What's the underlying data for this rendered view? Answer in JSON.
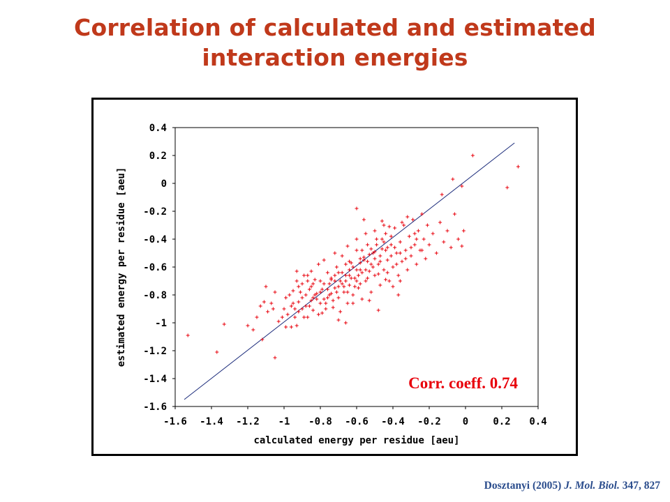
{
  "slide": {
    "title": "Correlation of calculated and estimated interaction energies"
  },
  "citation": {
    "author_year": "Dosztanyi (2005) ",
    "journal": "J. Mol. Biol.",
    "volume_pages": " 347, 827"
  },
  "colors": {
    "title": "#c0391b",
    "points": "#e8000b",
    "fit_line": "#1a2a7a",
    "annotation": "#e8000b",
    "citation": "#2a4c8c"
  },
  "chart_data": {
    "type": "scatter",
    "title": "",
    "xlabel": "calculated energy per residue [aeu]",
    "ylabel": "estimated energy per residue [aeu]",
    "xlim": [
      -1.6,
      0.4
    ],
    "ylim": [
      -1.6,
      0.4
    ],
    "x_ticks": [
      -1.6,
      -1.4,
      -1.2,
      -1,
      -0.8,
      -0.6,
      -0.4,
      -0.2,
      0,
      0.2,
      0.4
    ],
    "x_tick_labels": [
      "-1.6",
      "-1.4",
      "-1.2",
      "-1",
      "-0.8",
      "-0.6",
      "-0.4",
      "-0.2",
      "0",
      "0.2",
      "0.4"
    ],
    "y_ticks": [
      0.4,
      0.2,
      0,
      -0.2,
      -0.4,
      -0.6,
      -0.8,
      -1,
      -1.2,
      -1.4,
      -1.6
    ],
    "y_tick_labels": [
      "0.4",
      "0.2",
      "0",
      "-0.2",
      "-0.4",
      "-0.6",
      "-0.8",
      "-1",
      "-1.2",
      "-1.4",
      "-1.6"
    ],
    "grid": false,
    "annotation": "Corr. coeff. 0.74",
    "fit_line": {
      "x": [
        -1.55,
        0.27
      ],
      "y": [
        -1.55,
        0.29
      ]
    },
    "series": [
      {
        "marker": "+",
        "points": [
          [
            -1.53,
            -1.09
          ],
          [
            -1.37,
            -1.21
          ],
          [
            -1.33,
            -1.01
          ],
          [
            -1.2,
            -1.02
          ],
          [
            -1.17,
            -1.05
          ],
          [
            -1.15,
            -0.96
          ],
          [
            -1.13,
            -0.88
          ],
          [
            -1.12,
            -1.12
          ],
          [
            -1.1,
            -0.74
          ],
          [
            -1.09,
            -0.92
          ],
          [
            -1.07,
            -0.86
          ],
          [
            -1.05,
            -0.78
          ],
          [
            -1.03,
            -0.99
          ],
          [
            -1.01,
            -0.96
          ],
          [
            -0.99,
            -0.82
          ],
          [
            -0.98,
            -0.94
          ],
          [
            -0.96,
            -1.03
          ],
          [
            -0.95,
            -0.77
          ],
          [
            -0.94,
            -0.9
          ],
          [
            -0.93,
            -0.63
          ],
          [
            -0.92,
            -0.85
          ],
          [
            -0.9,
            -0.72
          ],
          [
            -0.89,
            -0.96
          ],
          [
            -0.88,
            -0.8
          ],
          [
            -0.87,
            -0.66
          ],
          [
            -0.86,
            -0.88
          ],
          [
            -0.85,
            -0.74
          ],
          [
            -0.84,
            -0.91
          ],
          [
            -0.83,
            -0.69
          ],
          [
            -0.82,
            -0.83
          ],
          [
            -0.81,
            -0.58
          ],
          [
            -0.8,
            -0.78
          ],
          [
            -0.79,
            -0.93
          ],
          [
            -0.78,
            -0.72
          ],
          [
            -0.77,
            -0.86
          ],
          [
            -0.76,
            -0.64
          ],
          [
            -0.75,
            -0.8
          ],
          [
            -0.74,
            -0.69
          ],
          [
            -0.73,
            -0.89
          ],
          [
            -0.72,
            -0.75
          ],
          [
            -0.71,
            -0.6
          ],
          [
            -0.7,
            -0.82
          ],
          [
            -0.69,
            -0.7
          ],
          [
            -0.68,
            -0.52
          ],
          [
            -0.67,
            -0.78
          ],
          [
            -0.66,
            -0.66
          ],
          [
            -0.65,
            -0.86
          ],
          [
            -0.64,
            -0.73
          ],
          [
            -0.63,
            -0.57
          ],
          [
            -0.62,
            -0.8
          ],
          [
            -0.61,
            -0.68
          ],
          [
            -0.6,
            -0.48
          ],
          [
            -0.59,
            -0.75
          ],
          [
            -0.58,
            -0.62
          ],
          [
            -0.57,
            -0.83
          ],
          [
            -0.56,
            -0.55
          ],
          [
            -0.55,
            -0.7
          ],
          [
            -0.54,
            -0.44
          ],
          [
            -0.53,
            -0.63
          ],
          [
            -0.52,
            -0.78
          ],
          [
            -0.51,
            -0.5
          ],
          [
            -0.5,
            -0.66
          ],
          [
            -0.49,
            -0.4
          ],
          [
            -0.48,
            -0.58
          ],
          [
            -0.47,
            -0.73
          ],
          [
            -0.46,
            -0.47
          ],
          [
            -0.45,
            -0.62
          ],
          [
            -0.44,
            -0.36
          ],
          [
            -0.43,
            -0.55
          ],
          [
            -0.42,
            -0.7
          ],
          [
            -0.41,
            -0.44
          ],
          [
            -0.4,
            -0.6
          ],
          [
            -0.39,
            -0.32
          ],
          [
            -0.38,
            -0.5
          ],
          [
            -0.37,
            -0.66
          ],
          [
            -0.36,
            -0.42
          ],
          [
            -0.35,
            -0.56
          ],
          [
            -0.34,
            -0.3
          ],
          [
            -0.33,
            -0.48
          ],
          [
            -0.32,
            -0.62
          ],
          [
            -0.31,
            -0.38
          ],
          [
            -0.3,
            -0.52
          ],
          [
            -0.29,
            -0.26
          ],
          [
            -0.28,
            -0.44
          ],
          [
            -0.27,
            -0.58
          ],
          [
            -0.26,
            -0.34
          ],
          [
            -0.25,
            -0.48
          ],
          [
            -0.24,
            -0.22
          ],
          [
            -0.23,
            -0.4
          ],
          [
            -0.22,
            -0.54
          ],
          [
            -0.21,
            -0.3
          ],
          [
            -0.2,
            -0.44
          ],
          [
            -0.18,
            -0.36
          ],
          [
            -0.16,
            -0.5
          ],
          [
            -0.14,
            -0.28
          ],
          [
            -0.12,
            -0.42
          ],
          [
            -0.1,
            -0.34
          ],
          [
            -0.08,
            -0.46
          ],
          [
            -0.06,
            -0.22
          ],
          [
            -0.04,
            -0.4
          ],
          [
            -0.02,
            -0.45
          ],
          [
            -0.01,
            -0.34
          ],
          [
            -0.13,
            -0.08
          ],
          [
            -0.07,
            0.03
          ],
          [
            0.04,
            0.2
          ],
          [
            -0.02,
            -0.02
          ],
          [
            0.23,
            -0.03
          ],
          [
            0.29,
            0.12
          ],
          [
            -0.6,
            -0.18
          ],
          [
            -1.05,
            -1.25
          ],
          [
            -0.84,
            -0.72
          ],
          [
            -0.72,
            -0.66
          ],
          [
            -0.66,
            -0.58
          ],
          [
            -0.58,
            -0.54
          ],
          [
            -0.52,
            -0.47
          ],
          [
            -0.46,
            -0.4
          ],
          [
            -0.7,
            -0.98
          ],
          [
            -0.66,
            -1.0
          ],
          [
            -0.53,
            -0.84
          ],
          [
            -0.48,
            -0.91
          ],
          [
            -0.87,
            -0.96
          ],
          [
            -0.93,
            -1.02
          ],
          [
            -0.99,
            -1.03
          ],
          [
            -0.85,
            -0.63
          ],
          [
            -0.78,
            -0.55
          ],
          [
            -0.72,
            -0.5
          ],
          [
            -0.65,
            -0.45
          ],
          [
            -0.6,
            -0.4
          ],
          [
            -0.55,
            -0.36
          ],
          [
            -0.5,
            -0.34
          ],
          [
            -0.45,
            -0.3
          ],
          [
            -0.78,
            -0.83
          ],
          [
            -0.74,
            -0.79
          ],
          [
            -0.7,
            -0.74
          ],
          [
            -0.68,
            -0.64
          ],
          [
            -0.64,
            -0.62
          ],
          [
            -0.62,
            -0.6
          ],
          [
            -0.58,
            -0.57
          ],
          [
            -0.56,
            -0.53
          ],
          [
            -0.53,
            -0.51
          ],
          [
            -0.5,
            -0.49
          ],
          [
            -0.92,
            -0.74
          ],
          [
            -0.9,
            -0.82
          ],
          [
            -0.86,
            -0.76
          ],
          [
            -0.82,
            -0.79
          ],
          [
            -0.8,
            -0.7
          ],
          [
            -0.76,
            -0.76
          ],
          [
            -0.74,
            -0.68
          ],
          [
            -0.7,
            -0.64
          ],
          [
            -0.66,
            -0.7
          ],
          [
            -0.64,
            -0.56
          ],
          [
            -0.6,
            -0.62
          ],
          [
            -0.57,
            -0.48
          ],
          [
            -0.54,
            -0.56
          ],
          [
            -0.5,
            -0.54
          ],
          [
            -0.47,
            -0.52
          ],
          [
            -0.44,
            -0.48
          ],
          [
            -0.41,
            -0.52
          ],
          [
            -0.38,
            -0.58
          ],
          [
            -0.36,
            -0.5
          ],
          [
            -0.33,
            -0.54
          ],
          [
            -0.3,
            -0.46
          ],
          [
            -0.27,
            -0.4
          ],
          [
            -0.24,
            -0.48
          ],
          [
            -0.35,
            -0.28
          ],
          [
            -0.32,
            -0.24
          ],
          [
            -0.28,
            -0.36
          ],
          [
            -0.46,
            -0.27
          ],
          [
            -0.42,
            -0.31
          ],
          [
            -0.56,
            -0.26
          ],
          [
            -0.48,
            -0.65
          ],
          [
            -0.44,
            -0.69
          ],
          [
            -0.4,
            -0.74
          ],
          [
            -0.37,
            -0.8
          ],
          [
            -0.36,
            -0.7
          ],
          [
            -0.95,
            -0.86
          ],
          [
            -0.97,
            -0.8
          ],
          [
            -1.0,
            -0.9
          ],
          [
            -1.06,
            -0.9
          ],
          [
            -1.11,
            -0.85
          ],
          [
            -0.89,
            -0.66
          ],
          [
            -0.85,
            -0.84
          ],
          [
            -0.81,
            -0.94
          ],
          [
            -0.77,
            -0.9
          ],
          [
            -0.73,
            -0.84
          ],
          [
            -0.69,
            -0.92
          ],
          [
            -0.65,
            -0.78
          ],
          [
            -0.62,
            -0.86
          ],
          [
            -0.58,
            -0.72
          ],
          [
            -0.54,
            -0.68
          ],
          [
            -0.51,
            -0.6
          ],
          [
            -0.47,
            -0.56
          ],
          [
            -0.43,
            -0.64
          ],
          [
            -0.39,
            -0.46
          ],
          [
            -0.63,
            -0.68
          ],
          [
            -0.61,
            -0.74
          ],
          [
            -0.59,
            -0.66
          ],
          [
            -0.67,
            -0.74
          ],
          [
            -0.71,
            -0.78
          ],
          [
            -0.75,
            -0.72
          ],
          [
            -0.79,
            -0.76
          ],
          [
            -0.83,
            -0.8
          ],
          [
            -0.87,
            -0.7
          ],
          [
            -0.91,
            -0.78
          ],
          [
            -0.93,
            -0.7
          ],
          [
            -0.49,
            -0.44
          ],
          [
            -0.45,
            -0.42
          ],
          [
            -0.41,
            -0.38
          ],
          [
            -0.43,
            -0.46
          ],
          [
            -0.55,
            -0.62
          ],
          [
            -0.52,
            -0.58
          ],
          [
            -0.57,
            -0.64
          ],
          [
            -0.6,
            -0.7
          ],
          [
            -0.64,
            -0.66
          ],
          [
            -0.68,
            -0.72
          ],
          [
            -0.72,
            -0.7
          ],
          [
            -0.76,
            -0.82
          ],
          [
            -0.8,
            -0.86
          ],
          [
            -0.84,
            -0.82
          ],
          [
            -0.88,
            -0.88
          ],
          [
            -0.92,
            -0.92
          ],
          [
            -0.96,
            -0.88
          ],
          [
            -0.94,
            -0.96
          ],
          [
            -0.9,
            -0.9
          ]
        ]
      }
    ]
  }
}
